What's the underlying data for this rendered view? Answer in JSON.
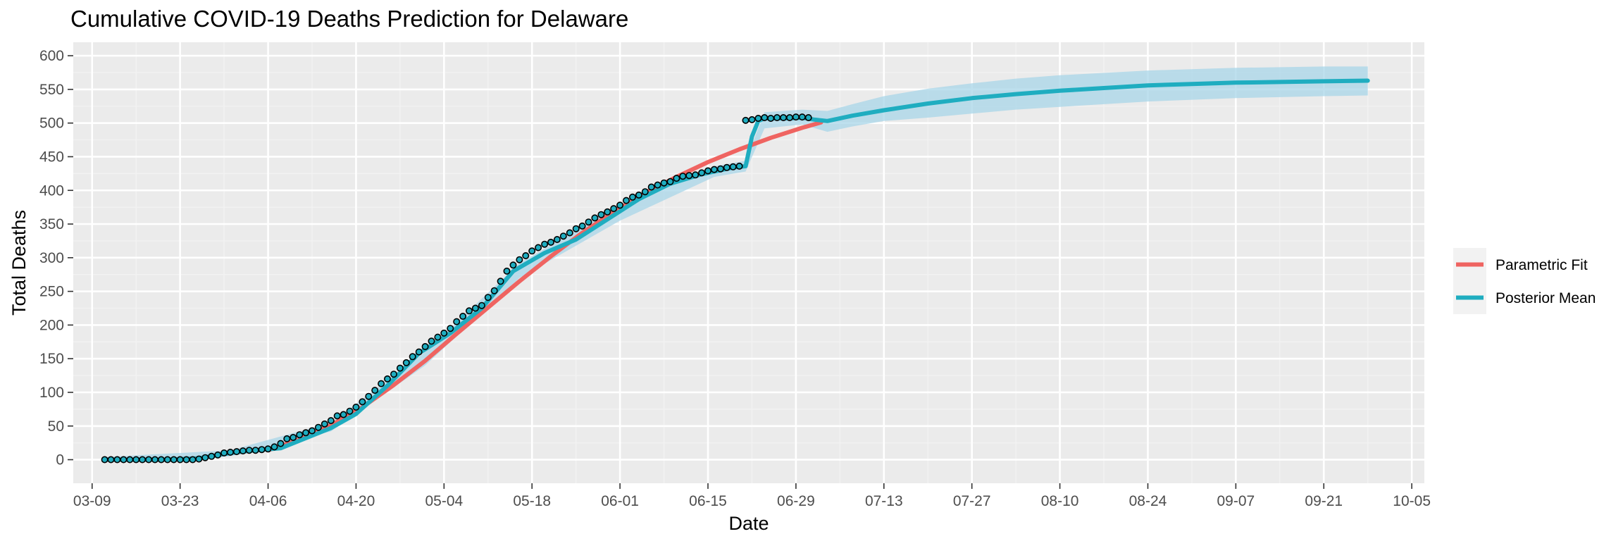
{
  "chart_data": {
    "type": "line",
    "title": "Cumulative COVID-19 Deaths Prediction for Delaware",
    "xlabel": "Date",
    "ylabel": "Total Deaths",
    "x_ticks": [
      "03-09",
      "03-23",
      "04-06",
      "04-20",
      "05-04",
      "05-18",
      "06-01",
      "06-15",
      "06-29",
      "07-13",
      "07-27",
      "08-10",
      "08-24",
      "09-07",
      "09-21",
      "10-05"
    ],
    "y_ticks": [
      0,
      50,
      100,
      150,
      200,
      250,
      300,
      350,
      400,
      450,
      500,
      550,
      600
    ],
    "xlim": [
      "03-06",
      "10-07"
    ],
    "ylim": [
      -35,
      620
    ],
    "grid": true,
    "legend": {
      "position": "right"
    },
    "colors": {
      "panel": "#ebebeb",
      "grid_major": "#ffffff",
      "grid_minor": "#f2f2f2",
      "parametric_fit": "#ef6461",
      "posterior_mean": "#1fadc0",
      "band": "#a8d5e8",
      "points_fill": "#1fadc0",
      "points_stroke": "#000000",
      "legend_key_bg": "#f2f2f2"
    },
    "series": [
      {
        "name": "Parametric Fit",
        "kind": "line",
        "x": [
          "04-06",
          "04-11",
          "04-16",
          "04-21",
          "04-26",
          "05-01",
          "05-06",
          "05-11",
          "05-16",
          "05-21",
          "05-26",
          "05-31",
          "06-05",
          "06-10",
          "06-15",
          "06-20",
          "06-25",
          "06-30",
          "07-03"
        ],
        "y": [
          14,
          30,
          51,
          78,
          111,
          147,
          187,
          226,
          265,
          302,
          337,
          368,
          396,
          420,
          442,
          461,
          478,
          493,
          501
        ]
      },
      {
        "name": "Posterior Mean",
        "kind": "line",
        "x": [
          "03-11",
          "03-16",
          "03-21",
          "03-26",
          "03-31",
          "04-04",
          "04-08",
          "04-12",
          "04-16",
          "04-20",
          "04-25",
          "04-30",
          "05-05",
          "05-10",
          "05-15",
          "05-20",
          "05-25",
          "05-30",
          "06-04",
          "06-09",
          "06-14",
          "06-19",
          "06-21",
          "06-22",
          "06-23",
          "06-24",
          "06-26",
          "06-28",
          "06-30",
          "07-02",
          "07-04",
          "07-08",
          "07-13",
          "07-20",
          "07-27",
          "08-03",
          "08-10",
          "08-17",
          "08-24",
          "08-31",
          "09-07",
          "09-14",
          "09-21",
          "09-28"
        ],
        "y": [
          0,
          0,
          0,
          2,
          10,
          14,
          17,
          32,
          47,
          68,
          110,
          158,
          188,
          225,
          280,
          307,
          327,
          357,
          387,
          410,
          424,
          434,
          436,
          480,
          503,
          507,
          507,
          507,
          508,
          505,
          503,
          511,
          519,
          529,
          537,
          543,
          548,
          552,
          556,
          558,
          560,
          561,
          562,
          563
        ]
      }
    ],
    "band": {
      "name": "Posterior interval",
      "x": [
        "03-11",
        "03-31",
        "04-16",
        "05-01",
        "05-16",
        "06-01",
        "06-16",
        "06-21",
        "06-24",
        "06-30",
        "07-04",
        "07-08",
        "07-13",
        "07-20",
        "07-27",
        "08-03",
        "08-10",
        "08-24",
        "09-07",
        "09-21",
        "09-28"
      ],
      "lower": [
        -2,
        5,
        42,
        140,
        270,
        355,
        420,
        428,
        492,
        498,
        487,
        495,
        503,
        508,
        514,
        520,
        524,
        532,
        537,
        540,
        541
      ],
      "upper": [
        4,
        14,
        55,
        160,
        292,
        378,
        436,
        444,
        516,
        520,
        518,
        528,
        540,
        551,
        559,
        566,
        571,
        578,
        582,
        584,
        584
      ]
    },
    "observed": {
      "x": [
        "03-11",
        "03-12",
        "03-13",
        "03-14",
        "03-15",
        "03-16",
        "03-17",
        "03-18",
        "03-19",
        "03-20",
        "03-21",
        "03-22",
        "03-23",
        "03-24",
        "03-25",
        "03-26",
        "03-27",
        "03-28",
        "03-29",
        "03-30",
        "03-31",
        "04-01",
        "04-02",
        "04-03",
        "04-04",
        "04-05",
        "04-06",
        "04-07",
        "04-08",
        "04-09",
        "04-10",
        "04-11",
        "04-12",
        "04-13",
        "04-14",
        "04-15",
        "04-16",
        "04-17",
        "04-18",
        "04-19",
        "04-20",
        "04-21",
        "04-22",
        "04-23",
        "04-24",
        "04-25",
        "04-26",
        "04-27",
        "04-28",
        "04-29",
        "04-30",
        "05-01",
        "05-02",
        "05-03",
        "05-04",
        "05-05",
        "05-06",
        "05-07",
        "05-08",
        "05-09",
        "05-10",
        "05-11",
        "05-12",
        "05-13",
        "05-14",
        "05-15",
        "05-16",
        "05-17",
        "05-18",
        "05-19",
        "05-20",
        "05-21",
        "05-22",
        "05-23",
        "05-24",
        "05-25",
        "05-26",
        "05-27",
        "05-28",
        "05-29",
        "05-30",
        "05-31",
        "06-01",
        "06-02",
        "06-03",
        "06-04",
        "06-05",
        "06-06",
        "06-07",
        "06-08",
        "06-09",
        "06-10",
        "06-11",
        "06-12",
        "06-13",
        "06-14",
        "06-15",
        "06-16",
        "06-17",
        "06-18",
        "06-19",
        "06-20",
        "06-21",
        "06-22",
        "06-23",
        "06-24",
        "06-25",
        "06-26",
        "06-27",
        "06-28",
        "06-29",
        "06-30",
        "07-01"
      ],
      "y": [
        0,
        0,
        0,
        0,
        0,
        0,
        0,
        0,
        0,
        0,
        0,
        0,
        0,
        0,
        0,
        1,
        3,
        5,
        7,
        10,
        11,
        12,
        13,
        14,
        14,
        15,
        16,
        19,
        24,
        31,
        33,
        37,
        40,
        43,
        48,
        53,
        58,
        65,
        67,
        72,
        78,
        86,
        94,
        103,
        113,
        120,
        127,
        136,
        144,
        153,
        160,
        168,
        176,
        182,
        188,
        195,
        205,
        213,
        221,
        225,
        229,
        241,
        251,
        265,
        280,
        289,
        297,
        303,
        310,
        315,
        320,
        323,
        327,
        332,
        337,
        343,
        347,
        353,
        359,
        364,
        368,
        373,
        378,
        385,
        390,
        393,
        398,
        405,
        408,
        411,
        413,
        418,
        421,
        422,
        423,
        426,
        429,
        431,
        432,
        434,
        435,
        436,
        504,
        505,
        507,
        508,
        507,
        508,
        508,
        508,
        509,
        509,
        508
      ]
    }
  },
  "legend_items": [
    {
      "label": "Parametric Fit"
    },
    {
      "label": "Posterior Mean"
    }
  ]
}
